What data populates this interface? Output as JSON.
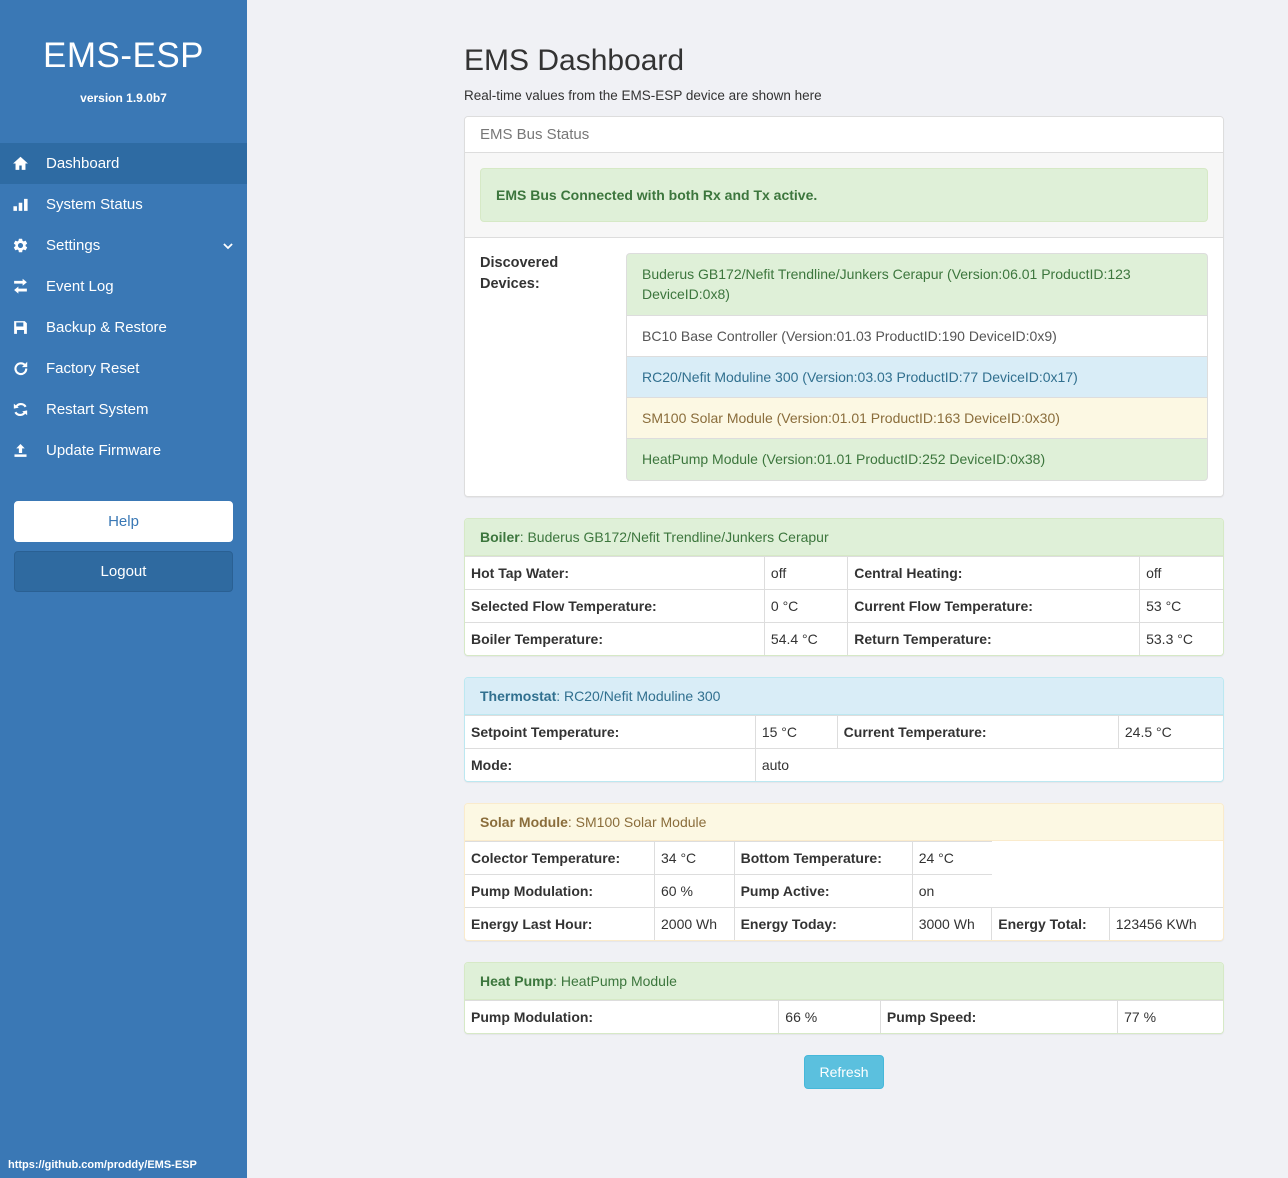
{
  "sidebar": {
    "brand": "EMS-ESP",
    "version": "version 1.9.0b7",
    "nav": [
      {
        "label": "Dashboard",
        "icon": "home-icon",
        "active": true
      },
      {
        "label": "System Status",
        "icon": "bar-chart-icon"
      },
      {
        "label": "Settings",
        "icon": "gear-icon",
        "chevron": true
      },
      {
        "label": "Event Log",
        "icon": "exchange-icon"
      },
      {
        "label": "Backup & Restore",
        "icon": "save-icon"
      },
      {
        "label": "Factory Reset",
        "icon": "rotate-right-icon"
      },
      {
        "label": "Restart System",
        "icon": "refresh-icon"
      },
      {
        "label": "Update Firmware",
        "icon": "upload-icon"
      }
    ],
    "help_label": "Help",
    "logout_label": "Logout",
    "footer_url": "https://github.com/proddy/EMS-ESP"
  },
  "header": {
    "title": "EMS Dashboard",
    "subtitle": "Real-time values from the EMS-ESP device are shown here"
  },
  "bus_panel": {
    "title": "EMS Bus Status",
    "alert": "EMS Bus Connected with both Rx and Tx active.",
    "devices_label": "Discovered Devices:",
    "devices": [
      {
        "text": "Buderus GB172/Nefit Trendline/Junkers Cerapur (Version:06.01 ProductID:123 DeviceID:0x8)",
        "variant": "success"
      },
      {
        "text": "BC10 Base Controller (Version:01.03 ProductID:190 DeviceID:0x9)",
        "variant": "default"
      },
      {
        "text": "RC20/Nefit Moduline 300 (Version:03.03 ProductID:77 DeviceID:0x17)",
        "variant": "info"
      },
      {
        "text": "SM100 Solar Module (Version:01.01 ProductID:163 DeviceID:0x30)",
        "variant": "warning"
      },
      {
        "text": "HeatPump Module (Version:01.01 ProductID:252 DeviceID:0x38)",
        "variant": "success"
      }
    ]
  },
  "tables": {
    "boiler": {
      "variant": "success",
      "heading_bold": "Boiler",
      "heading_rest": ": Buderus GB172/Nefit Trendline/Junkers Cerapur",
      "col_widths": [
        "39.5%",
        "11%",
        "38.5%",
        "11%"
      ],
      "rows": [
        [
          {
            "t": "Hot Tap Water:",
            "b": 1
          },
          {
            "t": "off"
          },
          {
            "t": "Central Heating:",
            "b": 1
          },
          {
            "t": "off"
          }
        ],
        [
          {
            "t": "Selected Flow Temperature:",
            "b": 1
          },
          {
            "t": "0 °C"
          },
          {
            "t": "Current Flow Temperature:",
            "b": 1
          },
          {
            "t": "53 °C"
          }
        ],
        [
          {
            "t": "Boiler Temperature:",
            "b": 1
          },
          {
            "t": "54.4 °C"
          },
          {
            "t": "Return Temperature:",
            "b": 1
          },
          {
            "t": "53.3 °C"
          }
        ]
      ]
    },
    "thermostat": {
      "variant": "info",
      "heading_bold": "Thermostat",
      "heading_rest": ": RC20/Nefit Moduline 300",
      "col_widths": [
        "38.3%",
        "10.8%",
        "37.1%",
        "13.8%"
      ],
      "rows": [
        [
          {
            "t": "Setpoint Temperature:",
            "b": 1
          },
          {
            "t": "15 °C"
          },
          {
            "t": "Current Temperature:",
            "b": 1
          },
          {
            "t": "24.5 °C"
          }
        ],
        [
          {
            "t": "Mode:",
            "b": 1
          },
          {
            "t": "auto",
            "cs": 3
          }
        ]
      ]
    },
    "solar": {
      "variant": "warning",
      "heading_bold": "Solar Module",
      "heading_rest": ": SM100 Solar Module",
      "col_widths": [
        "25%",
        "10.5%",
        "23.5%",
        "10.5%",
        "15.5%",
        "15%"
      ],
      "rows": [
        [
          {
            "t": "Colector Temperature:",
            "b": 1
          },
          {
            "t": "34 °C"
          },
          {
            "t": "Bottom Temperature:",
            "b": 1
          },
          {
            "t": "24 °C"
          },
          {
            "t": "",
            "cs": 2,
            "ghost": 1
          }
        ],
        [
          {
            "t": "Pump Modulation:",
            "b": 1
          },
          {
            "t": "60 %"
          },
          {
            "t": "Pump Active:",
            "b": 1
          },
          {
            "t": "on"
          },
          {
            "t": "",
            "cs": 2,
            "ghost": 1
          }
        ],
        [
          {
            "t": "Energy Last Hour:",
            "b": 1
          },
          {
            "t": "2000 Wh"
          },
          {
            "t": "Energy Today:",
            "b": 1
          },
          {
            "t": "3000 Wh"
          },
          {
            "t": "Energy Total:",
            "b": 1
          },
          {
            "t": "123456 KWh"
          }
        ]
      ]
    },
    "heatpump": {
      "variant": "success",
      "heading_bold": "Heat Pump",
      "heading_rest": ": HeatPump Module",
      "col_widths": [
        "41.4%",
        "13.4%",
        "31.3%",
        "13.9%"
      ],
      "rows": [
        [
          {
            "t": "Pump Modulation:",
            "b": 1
          },
          {
            "t": "66 %"
          },
          {
            "t": "Pump Speed:",
            "b": 1
          },
          {
            "t": "77 %"
          }
        ]
      ]
    }
  },
  "refresh_label": "Refresh",
  "colors": {
    "sidebar": "#3a78b5",
    "sidebar_active": "#2e6ba3",
    "success_bg": "#dff0d8",
    "success_text": "#3c763d",
    "info_bg": "#d9edf7",
    "info_text": "#31708f",
    "warning_bg": "#fcf8e3",
    "warning_text": "#8a6d3b",
    "refresh_button": "#5bc0de",
    "page_bg": "#f0f1f5"
  }
}
